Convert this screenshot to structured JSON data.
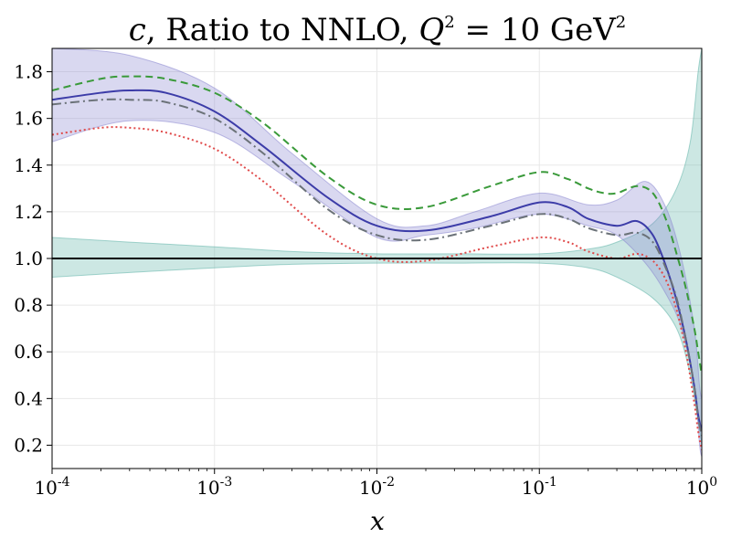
{
  "chart_data": {
    "type": "line",
    "title_parts": {
      "flavour": "c",
      "text": ", Ratio to NNLO, ",
      "scale": "Q",
      "eq": " = 10 GeV"
    },
    "xlabel": "x",
    "ylabel": "",
    "xscale": "log",
    "xlim": [
      0.0001,
      1
    ],
    "ylim": [
      0.1,
      1.9
    ],
    "x_ticks": [
      {
        "value": 0.0001,
        "base": "10",
        "exp": "-4"
      },
      {
        "value": 0.001,
        "base": "10",
        "exp": "-3"
      },
      {
        "value": 0.01,
        "base": "10",
        "exp": "-2"
      },
      {
        "value": 0.1,
        "base": "10",
        "exp": "-1"
      },
      {
        "value": 1,
        "base": "10",
        "exp": "0"
      }
    ],
    "y_ticks": [
      "0.2",
      "0.4",
      "0.6",
      "0.8",
      "1.0",
      "1.2",
      "1.4",
      "1.6",
      "1.8"
    ],
    "grid": true,
    "legend": "none",
    "bands": [
      {
        "color": "#5fb3a8",
        "x": [
          0.0001,
          0.0003,
          0.001,
          0.003,
          0.01,
          0.03,
          0.1,
          0.2,
          0.3,
          0.5,
          0.7,
          0.85,
          0.95,
          1.0
        ],
        "upper": [
          1.09,
          1.07,
          1.05,
          1.03,
          1.02,
          1.02,
          1.02,
          1.04,
          1.07,
          1.15,
          1.3,
          1.5,
          1.8,
          1.9
        ],
        "lower": [
          0.92,
          0.94,
          0.96,
          0.975,
          0.98,
          0.98,
          0.98,
          0.96,
          0.92,
          0.83,
          0.7,
          0.5,
          0.3,
          0.2
        ]
      },
      {
        "color": "#8a86cf",
        "x": [
          0.0001,
          0.0003,
          0.001,
          0.003,
          0.01,
          0.02,
          0.04,
          0.1,
          0.2,
          0.3,
          0.45,
          0.6,
          0.75,
          0.9,
          0.97,
          1.0
        ],
        "upper": [
          1.9,
          1.87,
          1.73,
          1.45,
          1.17,
          1.14,
          1.2,
          1.28,
          1.23,
          1.25,
          1.33,
          1.22,
          1.0,
          0.7,
          0.45,
          0.4
        ],
        "lower": [
          1.5,
          1.59,
          1.54,
          1.33,
          1.09,
          1.1,
          1.13,
          1.19,
          1.14,
          1.1,
          0.98,
          0.85,
          0.7,
          0.45,
          0.2,
          0.15
        ]
      }
    ],
    "series": [
      {
        "color": "#3c3ca8",
        "dash": "",
        "width": 2,
        "x": [
          0.0001,
          0.0002,
          0.0003,
          0.0005,
          0.001,
          0.002,
          0.005,
          0.01,
          0.02,
          0.05,
          0.1,
          0.15,
          0.2,
          0.3,
          0.4,
          0.5,
          0.6,
          0.7,
          0.8,
          0.9,
          0.95,
          1.0
        ],
        "y": [
          1.68,
          1.71,
          1.72,
          1.71,
          1.63,
          1.48,
          1.26,
          1.14,
          1.12,
          1.18,
          1.24,
          1.22,
          1.17,
          1.14,
          1.16,
          1.1,
          0.97,
          0.82,
          0.65,
          0.45,
          0.33,
          0.26
        ]
      },
      {
        "color": "#3a9a3a",
        "dash": "8,5",
        "width": 2,
        "x": [
          0.0001,
          0.0002,
          0.0003,
          0.0005,
          0.001,
          0.002,
          0.005,
          0.01,
          0.02,
          0.05,
          0.1,
          0.15,
          0.2,
          0.25,
          0.3,
          0.4,
          0.5,
          0.6,
          0.7,
          0.8,
          0.9,
          0.95,
          1.0
        ],
        "y": [
          1.72,
          1.77,
          1.78,
          1.77,
          1.71,
          1.58,
          1.35,
          1.23,
          1.22,
          1.31,
          1.37,
          1.34,
          1.3,
          1.28,
          1.28,
          1.31,
          1.28,
          1.17,
          1.02,
          0.87,
          0.7,
          0.6,
          0.5
        ]
      },
      {
        "color": "#6b7278",
        "dash": "10,4,2,4",
        "width": 2,
        "x": [
          0.0001,
          0.0002,
          0.0003,
          0.0005,
          0.001,
          0.002,
          0.005,
          0.01,
          0.02,
          0.05,
          0.1,
          0.15,
          0.2,
          0.3,
          0.4,
          0.5,
          0.6,
          0.7,
          0.8,
          0.9,
          0.95,
          1.0
        ],
        "y": [
          1.66,
          1.68,
          1.68,
          1.67,
          1.6,
          1.45,
          1.21,
          1.1,
          1.08,
          1.14,
          1.19,
          1.17,
          1.13,
          1.1,
          1.11,
          1.07,
          0.96,
          0.83,
          0.65,
          0.45,
          0.32,
          0.24
        ]
      },
      {
        "color": "#e04a4a",
        "dash": "2,3",
        "width": 2,
        "x": [
          0.0001,
          0.0002,
          0.0003,
          0.0005,
          0.001,
          0.002,
          0.005,
          0.01,
          0.02,
          0.05,
          0.1,
          0.15,
          0.2,
          0.3,
          0.4,
          0.5,
          0.6,
          0.7,
          0.8,
          0.9,
          0.95,
          1.0
        ],
        "y": [
          1.53,
          1.56,
          1.56,
          1.54,
          1.47,
          1.33,
          1.1,
          1.0,
          0.99,
          1.05,
          1.09,
          1.07,
          1.03,
          1.0,
          1.02,
          0.99,
          0.91,
          0.78,
          0.6,
          0.38,
          0.26,
          0.18
        ]
      }
    ],
    "reference_line": {
      "y": 1.0,
      "color": "#000000"
    }
  }
}
